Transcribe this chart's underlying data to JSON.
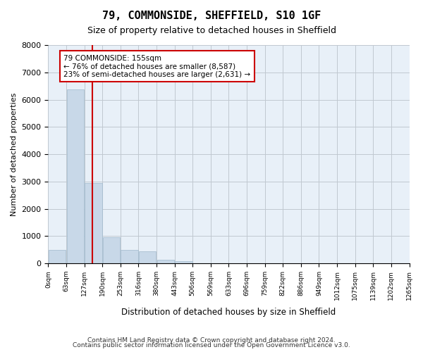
{
  "title": "79, COMMONSIDE, SHEFFIELD, S10 1GF",
  "subtitle": "Size of property relative to detached houses in Sheffield",
  "xlabel": "Distribution of detached houses by size in Sheffield",
  "ylabel": "Number of detached properties",
  "footer_line1": "Contains HM Land Registry data © Crown copyright and database right 2024.",
  "footer_line2": "Contains public sector information licensed under the Open Government Licence v3.0.",
  "bar_color": "#c8d8e8",
  "bar_edge_color": "#a0b8cc",
  "grid_color": "#c0c8d0",
  "bg_color": "#e8f0f8",
  "annotation_box_color": "#cc0000",
  "vline_color": "#cc0000",
  "bin_labels": [
    "0sqm",
    "63sqm",
    "127sqm",
    "190sqm",
    "253sqm",
    "316sqm",
    "380sqm",
    "443sqm",
    "506sqm",
    "569sqm",
    "633sqm",
    "696sqm",
    "759sqm",
    "822sqm",
    "886sqm",
    "949sqm",
    "1012sqm",
    "1075sqm",
    "1139sqm",
    "1202sqm",
    "1265sqm"
  ],
  "bin_values": [
    490,
    6370,
    2950,
    960,
    490,
    430,
    130,
    70,
    0,
    0,
    0,
    0,
    0,
    0,
    0,
    0,
    0,
    0,
    0,
    0
  ],
  "annotation_text_line1": "79 COMMONSIDE: 155sqm",
  "annotation_text_line2": "← 76% of detached houses are smaller (8,587)",
  "annotation_text_line3": "23% of semi-detached houses are larger (2,631) →",
  "ylim": [
    0,
    8000
  ],
  "yticks": [
    0,
    1000,
    2000,
    3000,
    4000,
    5000,
    6000,
    7000,
    8000
  ],
  "n_bins": 20,
  "vline_x": 1.94
}
